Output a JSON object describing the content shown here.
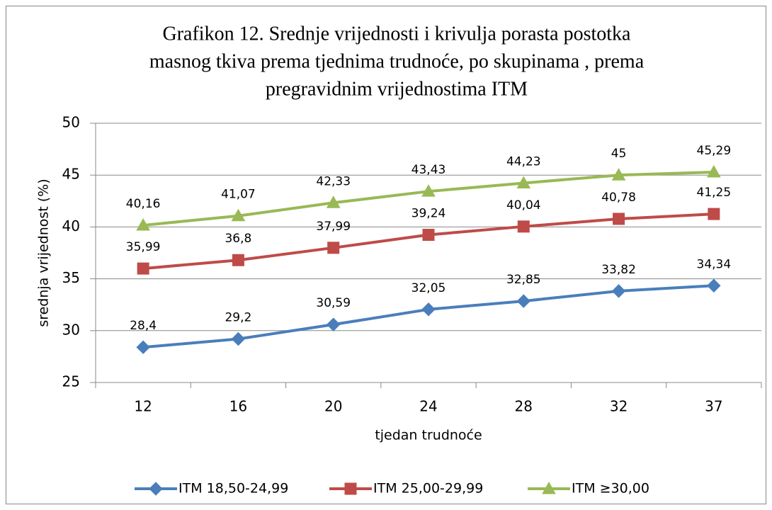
{
  "chart_data": {
    "type": "line",
    "title": [
      "Grafikon 12. Srednje vrijednosti i krivulja porasta postotka",
      "masnog tkiva  prema tjednima trudnoće, po skupinama , prema",
      "pregravidnim vrijednostima ITM"
    ],
    "x_label": "tjedan trudnoće",
    "y_label": "srednja vrijednost (%)",
    "categories": [
      "12",
      "16",
      "20",
      "24",
      "28",
      "32",
      "37"
    ],
    "series": [
      {
        "name": "ITM 18,50-24,99",
        "color": "#4a7ebb",
        "marker": "diamond",
        "values": [
          28.4,
          29.2,
          30.59,
          32.05,
          32.85,
          33.82,
          34.34
        ],
        "value_labels": [
          "28,4",
          "29,2",
          "30,59",
          "32,05",
          "32,85",
          "33,82",
          "34,34"
        ]
      },
      {
        "name": "ITM 25,00-29,99",
        "color": "#be4b48",
        "marker": "square",
        "values": [
          35.99,
          36.8,
          37.99,
          39.24,
          40.04,
          40.78,
          41.25
        ],
        "value_labels": [
          "35,99",
          "36,8",
          "37,99",
          "39,24",
          "40,04",
          "40,78",
          "41,25"
        ]
      },
      {
        "name": "ITM ≥30,00",
        "color": "#98b954",
        "marker": "triangle",
        "values": [
          40.16,
          41.07,
          42.33,
          43.43,
          44.23,
          45,
          45.29
        ],
        "value_labels": [
          "40,16",
          "41,07",
          "42,33",
          "43,43",
          "44,23",
          "45",
          "45,29"
        ]
      }
    ],
    "ylim": [
      25,
      50
    ],
    "yticks": [
      25,
      30,
      35,
      40,
      45,
      50
    ],
    "grid": true,
    "legend": "bottom"
  }
}
